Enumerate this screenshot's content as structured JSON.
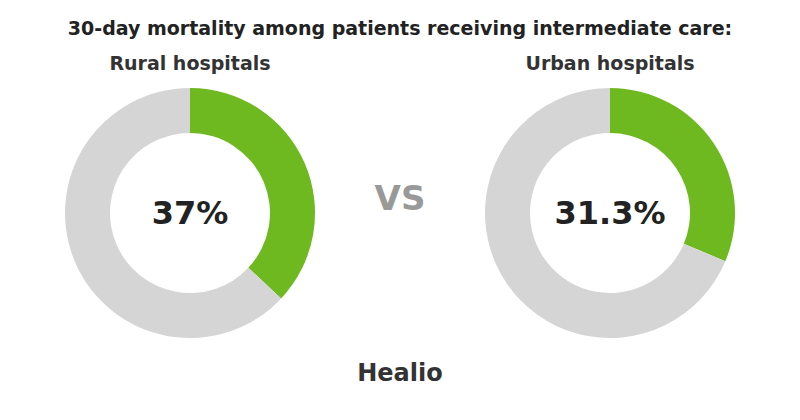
{
  "chart_data": {
    "type": "donut",
    "title": "30-day mortality among patients receiving intermediate care:",
    "annotations": [
      "VS",
      "Healio"
    ],
    "series": [
      {
        "name": "Rural hospitals",
        "values": [
          37.0,
          63.0
        ],
        "value_labels": [
          "37%",
          null
        ],
        "colors": [
          "#6eb820",
          "#d5d5d5"
        ]
      },
      {
        "name": "Urban hospitals",
        "values": [
          31.3,
          68.7
        ],
        "value_labels": [
          "31.3%",
          null
        ],
        "colors": [
          "#6eb820",
          "#d5d5d5"
        ]
      }
    ]
  }
}
